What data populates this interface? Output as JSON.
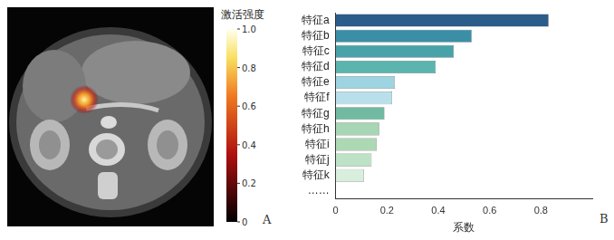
{
  "chart_data": {
    "type": "bar",
    "orientation": "horizontal",
    "categories": [
      "特征a",
      "特征b",
      "特征c",
      "特征d",
      "特征e",
      "特征f",
      "特征g",
      "特征h",
      "特征i",
      "特征j",
      "特征k",
      "……"
    ],
    "values": [
      0.83,
      0.53,
      0.46,
      0.39,
      0.23,
      0.22,
      0.19,
      0.17,
      0.16,
      0.14,
      0.11,
      null
    ],
    "colors": [
      "#2b5c8a",
      "#3a8fa6",
      "#48a2a9",
      "#5bb4ae",
      "#9dd4e1",
      "#b9e0ea",
      "#72b9a2",
      "#a6d6b3",
      "#acd9b4",
      "#bde2c5",
      "#d9efde",
      null
    ],
    "xlim": [
      0,
      1
    ],
    "xticks": [
      0,
      0.2,
      0.4,
      0.6,
      0.8
    ],
    "x_label": "系数",
    "grid": false,
    "panel_label": "B"
  },
  "image_panel": {
    "panel_label": "A",
    "colorbar": {
      "title": "激活强度",
      "range": [
        0,
        1
      ],
      "ticks": [
        0,
        0.2,
        0.4,
        0.6,
        0.8,
        {
          "value": 1,
          "label": "1.0"
        }
      ]
    }
  }
}
